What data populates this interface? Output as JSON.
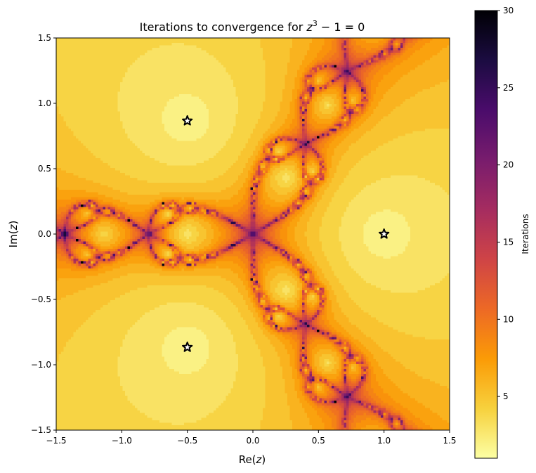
{
  "chart_data": {
    "type": "heatmap",
    "title": {
      "prefix": "Iterations to convergence for ",
      "var": "z",
      "exp": "3",
      "suffix": " − 1 = 0"
    },
    "xlabel": {
      "prefix": "Re(",
      "var": "z",
      "suffix": ")"
    },
    "ylabel": {
      "prefix": "Im(",
      "var": "z",
      "suffix": ")"
    },
    "xlim": [
      -1.5,
      1.5
    ],
    "ylim": [
      -1.5,
      1.5
    ],
    "x_ticks": [
      -1.5,
      -1.0,
      -0.5,
      0.0,
      0.5,
      1.0,
      1.5
    ],
    "x_tick_labels": [
      "−1.5",
      "−1.0",
      "−0.5",
      "0.0",
      "0.5",
      "1.0",
      "1.5"
    ],
    "y_ticks": [
      1.5,
      1.0,
      0.5,
      0.0,
      -0.5,
      -1.0,
      -1.5
    ],
    "y_tick_labels": [
      "1.5",
      "1.0",
      "0.5",
      "0.0",
      "−0.5",
      "−1.0",
      "−1.5"
    ],
    "polynomial": "z^3 - 1",
    "max_iterations": 30,
    "tolerance": 1e-06,
    "colormap": "inferno_r",
    "roots": [
      {
        "re": 1.0,
        "im": 0.0
      },
      {
        "re": -0.5,
        "im": 0.866
      },
      {
        "re": -0.5,
        "im": -0.866
      }
    ],
    "root_marker": {
      "shape": "star",
      "face_color": "#ffffff",
      "edge_color": "#000000"
    },
    "colorbar": {
      "label": "Iterations",
      "vmin": 1,
      "vmax": 30,
      "ticks": [
        5,
        10,
        15,
        20,
        25,
        30
      ],
      "tick_labels": [
        "5",
        "10",
        "15",
        "20",
        "25",
        "30"
      ]
    },
    "colormap_stops": [
      "#fcffa4",
      "#f7d13d",
      "#fb9b06",
      "#ed6925",
      "#cf4446",
      "#a52c60",
      "#781c6d",
      "#4a0c6b",
      "#1b0c41",
      "#000004"
    ]
  }
}
